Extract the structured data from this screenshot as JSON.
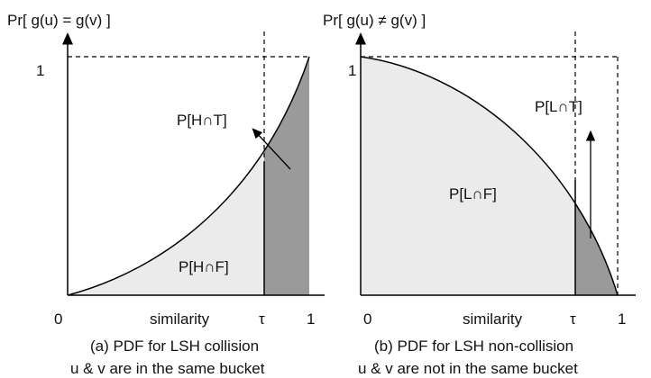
{
  "panels": [
    {
      "y_label": "Pr[ g(u) = g(v) ]",
      "y_one": "1",
      "region_top": "P[H∩T]",
      "region_bottom": "P[H∩F]",
      "x_zero": "0",
      "x_label": "similarity",
      "x_tau": "τ",
      "x_one": "1",
      "caption": "(a) PDF for LSH collision",
      "subcaption": "u & v are in the same bucket"
    },
    {
      "y_label": "Pr[ g(u) ≠ g(v) ]",
      "y_one": "1",
      "region_top": "P[L∩T]",
      "region_bottom": "P[L∩F]",
      "x_zero": "0",
      "x_label": "similarity",
      "x_tau": "τ",
      "x_one": "1",
      "caption": "(b) PDF for LSH non-collision",
      "subcaption": "u & v are not in the same bucket"
    }
  ]
}
